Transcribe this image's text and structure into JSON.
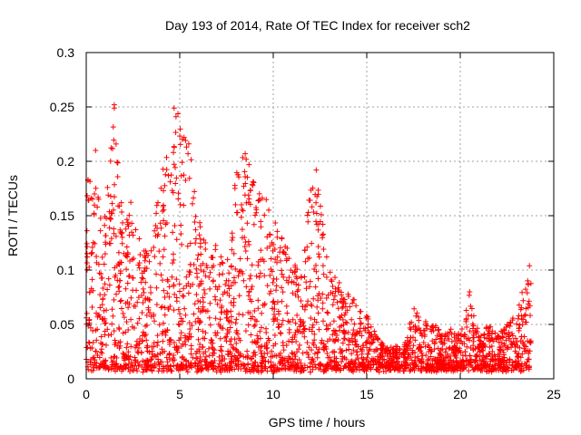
{
  "chart_data": {
    "type": "scatter",
    "title": "Day 193 of 2014, Rate Of TEC Index for receiver sch2",
    "xlabel": "GPS time / hours",
    "ylabel": "ROTI / TECUs",
    "xlim": [
      0,
      25
    ],
    "ylim": [
      0,
      0.3
    ],
    "xticks": [
      0,
      5,
      10,
      15,
      20,
      25
    ],
    "xtick_labels": [
      "0",
      "5",
      "10",
      "15",
      "20",
      "25"
    ],
    "yticks": [
      0,
      0.05,
      0.1,
      0.15,
      0.2,
      0.25,
      0.3
    ],
    "ytick_labels": [
      "0",
      "0.05",
      "0.1",
      "0.15",
      "0.2",
      "0.25",
      "0.3"
    ],
    "grid": true,
    "marker": "+",
    "color": "#ff0000",
    "x_data_range": [
      0,
      23.8
    ],
    "envelope": {
      "description": "approximate upper extent of ROTI scatter vs hour",
      "hours": [
        0,
        0.5,
        1,
        1.5,
        2,
        2.5,
        3,
        3.5,
        4,
        4.5,
        5,
        5.5,
        6,
        6.5,
        7,
        7.5,
        8,
        8.5,
        9,
        9.5,
        10,
        10.5,
        11,
        11.5,
        12,
        12.5,
        13,
        13.5,
        14,
        14.5,
        15,
        15.5,
        16,
        16.5,
        17,
        17.5,
        18,
        18.5,
        19,
        19.5,
        20,
        20.5,
        21,
        21.5,
        22,
        22.5,
        23,
        23.5,
        23.8
      ],
      "max_roti": [
        0.18,
        0.21,
        0.15,
        0.25,
        0.14,
        0.17,
        0.12,
        0.13,
        0.19,
        0.22,
        0.25,
        0.22,
        0.15,
        0.12,
        0.13,
        0.1,
        0.19,
        0.21,
        0.18,
        0.17,
        0.15,
        0.13,
        0.11,
        0.1,
        0.19,
        0.17,
        0.1,
        0.09,
        0.08,
        0.07,
        0.06,
        0.04,
        0.03,
        0.03,
        0.03,
        0.07,
        0.05,
        0.06,
        0.04,
        0.05,
        0.04,
        0.08,
        0.04,
        0.05,
        0.04,
        0.05,
        0.06,
        0.1,
        0.09
      ]
    },
    "markers": [
      {
        "x": 1.5,
        "y": 0.252
      },
      {
        "x": 1.5,
        "y": 0.249
      },
      {
        "x": 4.7,
        "y": 0.249
      },
      {
        "x": 4.8,
        "y": 0.241
      },
      {
        "x": 0.5,
        "y": 0.21
      },
      {
        "x": 8.5,
        "y": 0.207
      },
      {
        "x": 12.3,
        "y": 0.192
      },
      {
        "x": 0.1,
        "y": 0.183
      },
      {
        "x": 23.7,
        "y": 0.104
      },
      {
        "x": 20.5,
        "y": 0.08
      }
    ]
  }
}
